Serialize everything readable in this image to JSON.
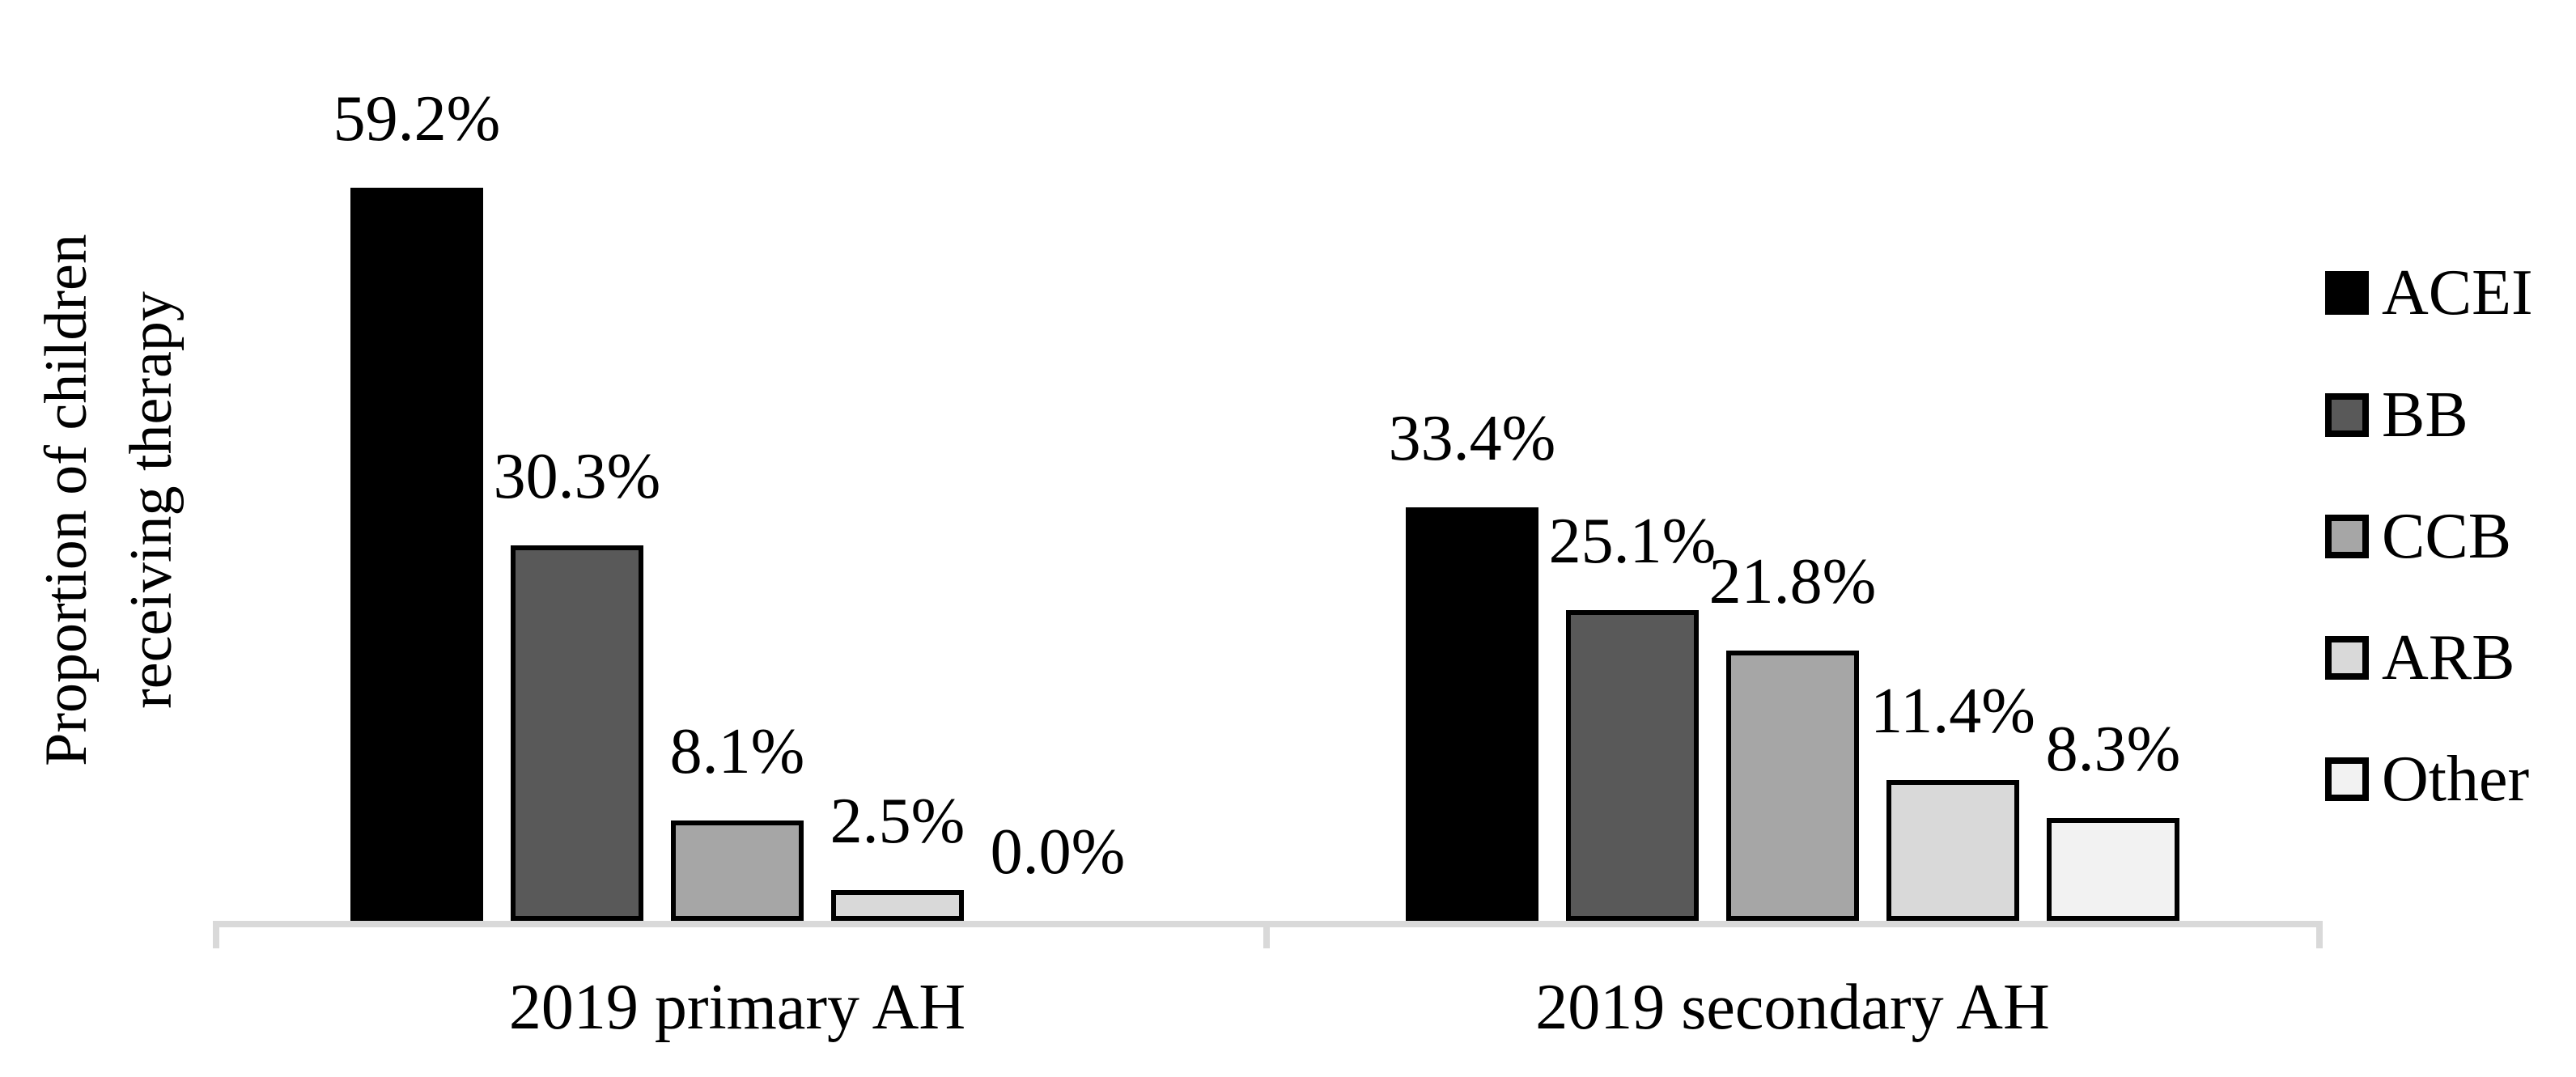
{
  "chart_data": {
    "type": "bar",
    "title": "",
    "ylabel": "Proportion of children receiving therapy",
    "ylabel_lines": [
      "Proportion of children",
      "receiving therapy"
    ],
    "categories": [
      "2019 primary AH",
      "2019 secondary AH"
    ],
    "series": [
      {
        "name": "ACEI",
        "color": "#000000",
        "values": [
          59.2,
          33.4
        ]
      },
      {
        "name": "BB",
        "color": "#595959",
        "values": [
          30.3,
          25.1
        ]
      },
      {
        "name": "CCB",
        "color": "#a6a6a6",
        "values": [
          8.1,
          21.8
        ]
      },
      {
        "name": "ARB",
        "color": "#d9d9d9",
        "values": [
          2.5,
          11.4
        ]
      },
      {
        "name": "Other",
        "color": "#f2f2f2",
        "values": [
          0.0,
          8.3
        ]
      }
    ],
    "data_labels": [
      [
        "59.2%",
        "30.3%",
        "8.1%",
        "2.5%",
        "0.0%"
      ],
      [
        "33.4%",
        "25.1%",
        "21.8%",
        "11.4%",
        "8.3%"
      ]
    ],
    "ylim": [
      0,
      65
    ],
    "grid": false,
    "legend_position": "right",
    "axis_color": "#d9d9d9",
    "bar_border_color": "#000000",
    "label_color": "#000000"
  }
}
